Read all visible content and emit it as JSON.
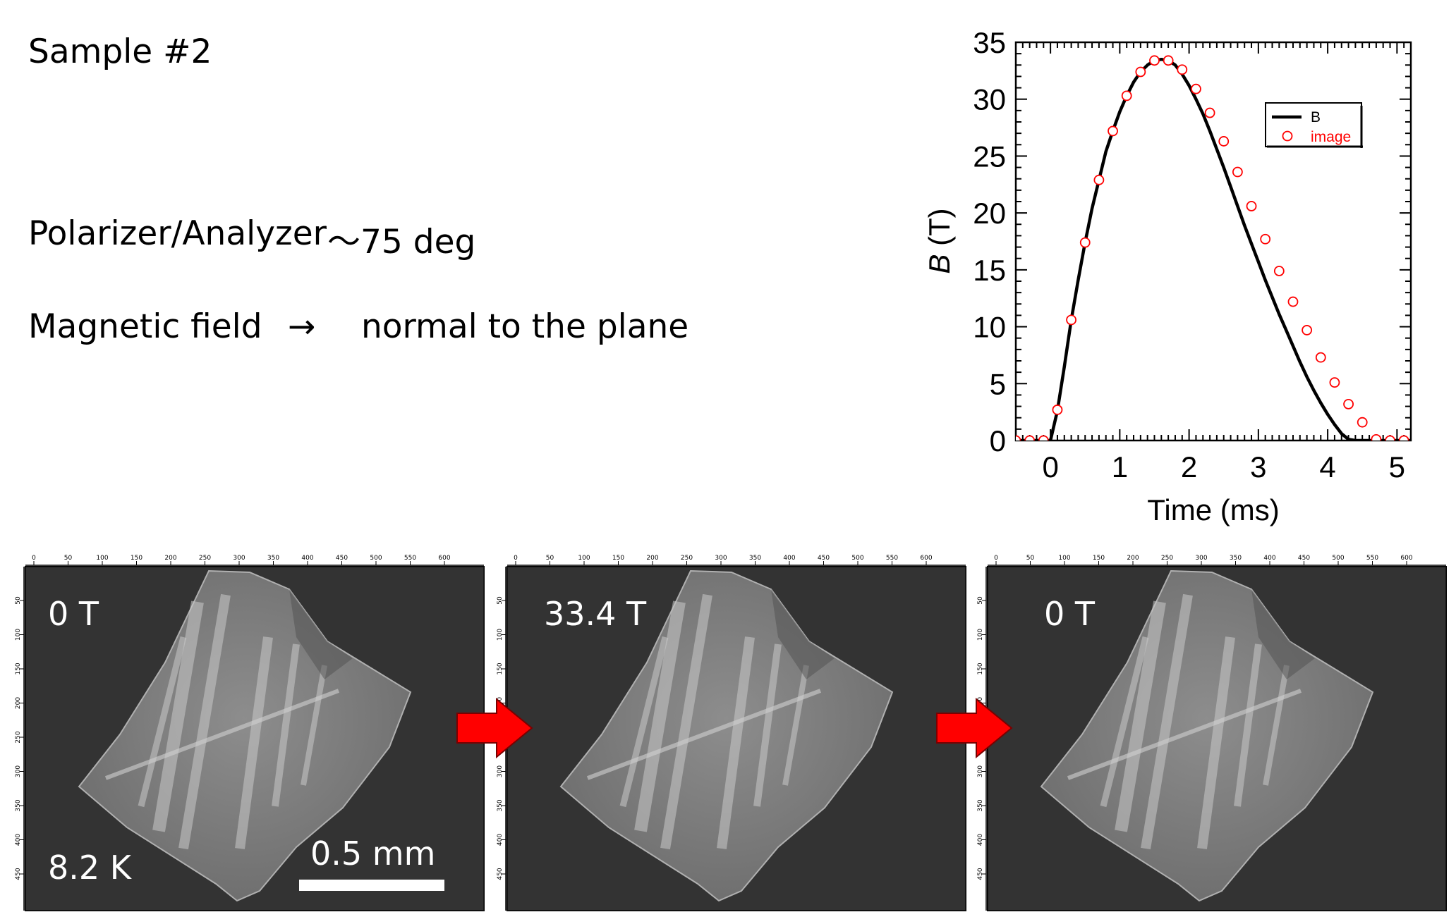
{
  "title": "Sample #2",
  "polarizer": {
    "label": "Polarizer/Analyzer",
    "value": "～75 deg"
  },
  "field": {
    "label": "Magnetic field",
    "arrow": "→",
    "value": "normal to the plane"
  },
  "chart_data": {
    "type": "line",
    "title": "",
    "xlabel": "Time (ms)",
    "ylabel_italic": "B",
    "ylabel_unit": "(T)",
    "xlim": [
      -0.5,
      5.2
    ],
    "ylim": [
      0,
      35
    ],
    "xticks": [
      0,
      1,
      2,
      3,
      4,
      5
    ],
    "yticks": [
      0,
      5,
      10,
      15,
      20,
      25,
      30,
      35
    ],
    "legend_position": "upper-right",
    "series": [
      {
        "name": "B",
        "kind": "line",
        "color": "#000000",
        "x": [
          -0.5,
          -0.3,
          -0.1,
          0.0,
          0.1,
          0.2,
          0.3,
          0.4,
          0.5,
          0.6,
          0.7,
          0.8,
          0.9,
          1.0,
          1.1,
          1.2,
          1.3,
          1.4,
          1.5,
          1.6,
          1.7,
          1.8,
          1.9,
          2.0,
          2.1,
          2.2,
          2.3,
          2.4,
          2.5,
          2.6,
          2.7,
          2.8,
          2.9,
          3.0,
          3.1,
          3.2,
          3.3,
          3.4,
          3.5,
          3.6,
          3.7,
          3.8,
          3.9,
          4.0,
          4.1,
          4.2,
          4.3,
          4.4,
          4.5,
          4.6,
          4.7,
          4.8,
          5.0,
          5.2
        ],
        "y": [
          0,
          0,
          0,
          0,
          2.6,
          6.5,
          10.6,
          14.1,
          17.4,
          20.4,
          22.9,
          25.4,
          27.2,
          28.9,
          30.3,
          31.5,
          32.4,
          33.0,
          33.4,
          33.5,
          33.4,
          33.0,
          32.2,
          31.2,
          30.0,
          28.7,
          27.2,
          25.6,
          24.0,
          22.3,
          20.6,
          18.9,
          17.3,
          15.7,
          14.1,
          12.6,
          11.1,
          9.7,
          8.3,
          6.9,
          5.6,
          4.4,
          3.3,
          2.3,
          1.4,
          0.6,
          0.1,
          0,
          0,
          0,
          0,
          0,
          0,
          0
        ]
      },
      {
        "name": "image",
        "kind": "marker",
        "color": "#ff0000",
        "x": [
          -0.5,
          -0.3,
          -0.1,
          0.1,
          0.3,
          0.5,
          0.7,
          0.9,
          1.1,
          1.3,
          1.5,
          1.7,
          1.9,
          2.1,
          2.3,
          2.5,
          2.7,
          2.9,
          3.1,
          3.3,
          3.5,
          3.7,
          3.9,
          4.1,
          4.3,
          4.5,
          4.7,
          4.9,
          5.1
        ],
        "y": [
          0,
          0,
          0,
          2.7,
          10.6,
          17.4,
          22.9,
          27.2,
          30.3,
          32.4,
          33.4,
          33.4,
          32.6,
          30.9,
          28.8,
          26.3,
          23.6,
          20.6,
          17.7,
          14.9,
          12.2,
          9.7,
          7.3,
          5.1,
          3.2,
          1.6,
          0.1,
          0,
          0
        ]
      }
    ]
  },
  "panels": [
    {
      "field": "0 T",
      "temperature": "8.2 K",
      "scale": "0.5 mm"
    },
    {
      "field": "33.4 T"
    },
    {
      "field": "0 T"
    }
  ],
  "ruler": {
    "x_ticks": [
      "0",
      "50",
      "100",
      "150",
      "200",
      "250",
      "300",
      "350",
      "400",
      "450",
      "500",
      "550",
      "600"
    ],
    "y_ticks": [
      "50",
      "100",
      "150",
      "200",
      "250",
      "300",
      "350",
      "400",
      "450"
    ]
  }
}
